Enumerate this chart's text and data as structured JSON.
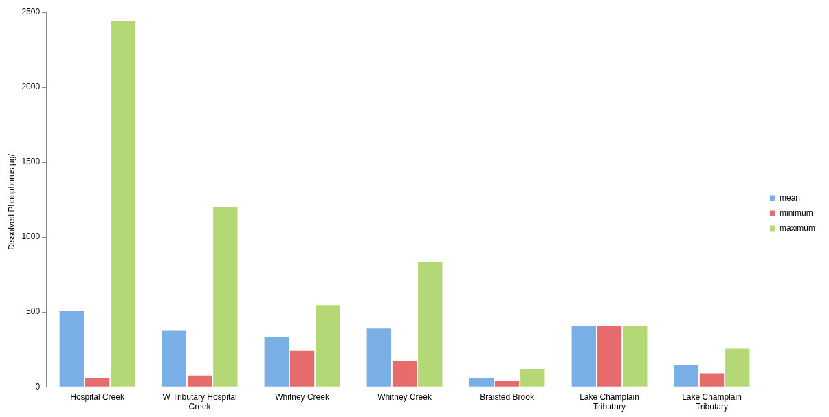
{
  "chart_data": {
    "type": "bar",
    "ylabel": "Dissolved Phosphorus µg/L",
    "categories": [
      "Hospital Creek",
      "W Tributary Hospital Creek",
      "Whitney Creek",
      "Whitney Creek",
      "Braisted Brook",
      "Lake Champlain Tributary",
      "Lake Champlain Tributary"
    ],
    "series": [
      {
        "name": "mean",
        "color": "#7aaee6",
        "values": [
          505,
          375,
          335,
          390,
          60,
          405,
          145
        ]
      },
      {
        "name": "minimum",
        "color": "#e66b6b",
        "values": [
          60,
          75,
          240,
          175,
          40,
          405,
          90
        ]
      },
      {
        "name": "maximum",
        "color": "#b5d877",
        "values": [
          2440,
          1200,
          545,
          835,
          120,
          405,
          255
        ]
      }
    ],
    "ylim": [
      0,
      2500
    ],
    "yticks": [
      0,
      500,
      1000,
      1500,
      2000,
      2500
    ],
    "grid": false,
    "legend": "right"
  }
}
